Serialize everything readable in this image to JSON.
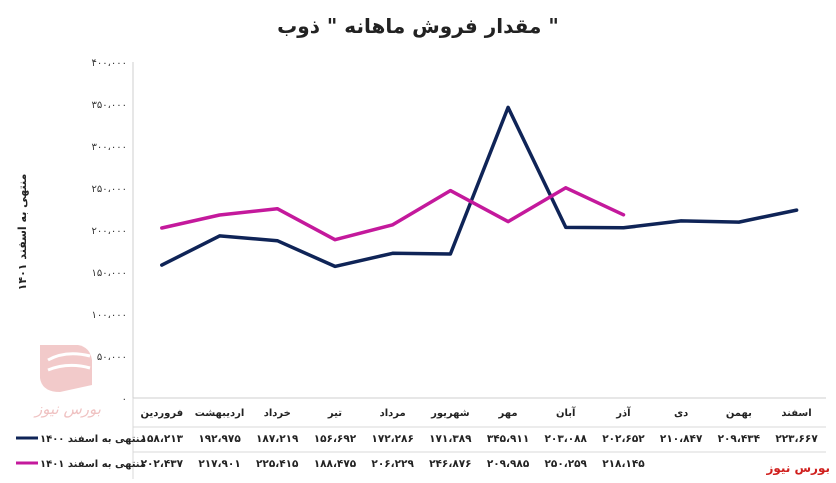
{
  "chart_data": {
    "type": "line",
    "title": "مقدار فروش ماهانه \" ذوب \"",
    "ylabel": "منتهی به اسفند ۱۴۰۱",
    "ylim": [
      0,
      400000
    ],
    "y_ticks": [
      0,
      50000,
      100000,
      150000,
      200000,
      250000,
      300000,
      350000,
      400000
    ],
    "y_tick_labels": [
      "۰",
      "۵۰،۰۰۰",
      "۱۰۰،۰۰۰",
      "۱۵۰،۰۰۰",
      "۲۰۰،۰۰۰",
      "۲۵۰،۰۰۰",
      "۳۰۰،۰۰۰",
      "۳۵۰،۰۰۰",
      "۴۰۰،۰۰۰"
    ],
    "categories": [
      "فروردین",
      "اردیبهشت",
      "خرداد",
      "تیر",
      "مرداد",
      "شهریور",
      "مهر",
      "آبان",
      "آذر",
      "دی",
      "بهمن",
      "اسفند"
    ],
    "grid": false,
    "legend": "bottom-left",
    "series": [
      {
        "name": "منتهی به اسفند ۱۴۰۰",
        "color": "#0f2457",
        "values": [
          158213,
          192975,
          187219,
          156692,
          172286,
          171389,
          345911,
          203088,
          202652,
          210847,
          209434,
          223667
        ],
        "labels": [
          "۱۵۸،۲۱۳",
          "۱۹۲،۹۷۵",
          "۱۸۷،۲۱۹",
          "۱۵۶،۶۹۲",
          "۱۷۲،۲۸۶",
          "۱۷۱،۳۸۹",
          "۳۴۵،۹۱۱",
          "۲۰۳،۰۸۸",
          "۲۰۲،۶۵۲",
          "۲۱۰،۸۴۷",
          "۲۰۹،۴۳۴",
          "۲۲۳،۶۶۷"
        ]
      },
      {
        "name": "منتهی به اسفند ۱۴۰۱",
        "color": "#c4199c",
        "values": [
          202437,
          217901,
          225415,
          188475,
          206229,
          246876,
          209985,
          250259,
          218145,
          null,
          null,
          null
        ],
        "labels": [
          "۲۰۲،۴۳۷",
          "۲۱۷،۹۰۱",
          "۲۲۵،۴۱۵",
          "۱۸۸،۴۷۵",
          "۲۰۶،۲۲۹",
          "۲۴۶،۸۷۶",
          "۲۰۹،۹۸۵",
          "۲۵۰،۲۵۹",
          "۲۱۸،۱۴۵",
          "",
          "",
          ""
        ]
      }
    ],
    "source_label": "بورس نیوز",
    "watermark": "بورس نیوز"
  }
}
